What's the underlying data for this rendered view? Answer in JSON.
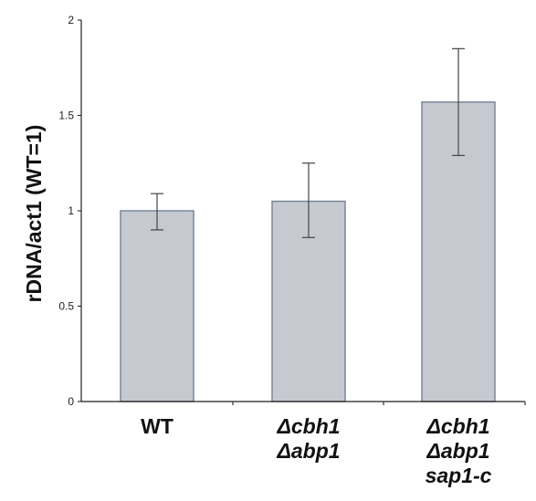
{
  "chart_data": {
    "type": "bar",
    "title": "",
    "xlabel": "",
    "ylabel": "rDNA/act1 (WT=1)",
    "ylim": [
      0,
      2
    ],
    "yticks": [
      "0",
      "0.5",
      "1",
      "1.5",
      "2"
    ],
    "grid": false,
    "categories": [
      {
        "label_lines": [
          "WT"
        ],
        "italic": false
      },
      {
        "label_lines": [
          "Δcbh1",
          "Δabp1"
        ],
        "italic": true
      },
      {
        "label_lines": [
          "Δcbh1",
          "Δabp1",
          "sap1-c"
        ],
        "italic": true
      }
    ],
    "values": [
      1.0,
      1.05,
      1.57
    ],
    "error_low": [
      0.9,
      0.86,
      1.29
    ],
    "error_high": [
      1.09,
      1.25,
      1.85
    ],
    "colors": {
      "bar_fill": "#c6cad0",
      "bar_stroke": "#7a8798",
      "axis": "#222222",
      "error": "#444444"
    }
  }
}
